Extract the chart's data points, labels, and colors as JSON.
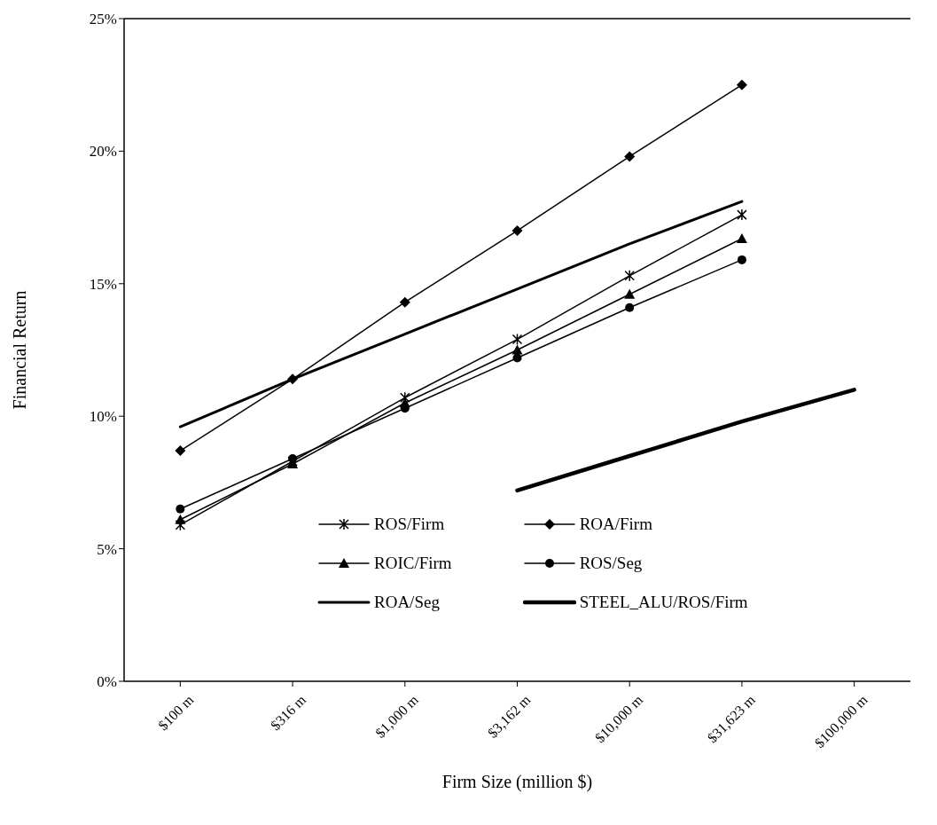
{
  "chart_data": {
    "type": "line",
    "xlabel": "Firm Size (million $)",
    "ylabel": "Financial Return",
    "categories": [
      "$100 m",
      "$316 m",
      "$1,000 m",
      "$3,162 m",
      "$10,000 m",
      "$31,623 m",
      "$100,000 m"
    ],
    "series": [
      {
        "name": "ROS/Firm",
        "color": "#000000",
        "marker": "cross",
        "values": [
          5.9,
          8.3,
          10.7,
          12.9,
          15.3,
          17.6,
          null
        ]
      },
      {
        "name": "ROA/Firm",
        "color": "#000000",
        "marker": "diamond",
        "values": [
          8.7,
          11.4,
          14.3,
          17.0,
          19.8,
          22.5,
          null
        ]
      },
      {
        "name": "ROIC/Firm",
        "color": "#000000",
        "marker": "triangle",
        "values": [
          6.1,
          8.2,
          10.5,
          12.5,
          14.6,
          16.7,
          null
        ]
      },
      {
        "name": "ROS/Seg",
        "color": "#000000",
        "marker": "circle",
        "values": [
          6.5,
          8.4,
          10.3,
          12.2,
          14.1,
          15.9,
          null
        ]
      },
      {
        "name": "ROA/Seg",
        "color": "#000000",
        "marker": "none",
        "values": [
          9.6,
          11.4,
          13.1,
          14.8,
          16.5,
          18.1,
          null
        ]
      },
      {
        "name": "STEEL_ALU/ROS/Firm",
        "color": "#000000",
        "marker": "none",
        "values": [
          null,
          null,
          null,
          7.2,
          8.5,
          9.8,
          11.0
        ]
      }
    ],
    "ylim": [
      0,
      25
    ],
    "yticks": [
      {
        "value": 0,
        "label": "0%"
      },
      {
        "value": 5,
        "label": "5%"
      },
      {
        "value": 10,
        "label": "10%"
      },
      {
        "value": 15,
        "label": "15%"
      },
      {
        "value": 20,
        "label": "20%"
      },
      {
        "value": 25,
        "label": "25%"
      }
    ],
    "grid": false,
    "legend": "bottom",
    "line_style": "solid"
  }
}
